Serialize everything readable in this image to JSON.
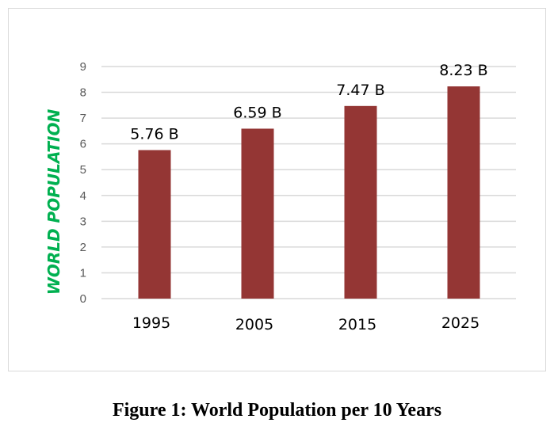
{
  "chart_data": {
    "type": "bar",
    "title": "",
    "xlabel": "",
    "ylabel": "WORLD POPULATION",
    "categories": [
      "1995",
      "2005",
      "2015",
      "2025"
    ],
    "values": [
      5.76,
      6.59,
      7.47,
      8.23
    ],
    "data_labels": [
      "5.76 B",
      "6.59 B",
      "7.47 B",
      "8.23 B"
    ],
    "yticks": [
      "0",
      "1",
      "2",
      "3",
      "4",
      "5",
      "6",
      "7",
      "8",
      "9"
    ],
    "ylim": [
      0,
      9
    ],
    "grid": true,
    "legend": "none",
    "bar_color": "#943634",
    "ylabel_color": "#00b050"
  },
  "caption": "Figure 1: World Population per 10 Years"
}
